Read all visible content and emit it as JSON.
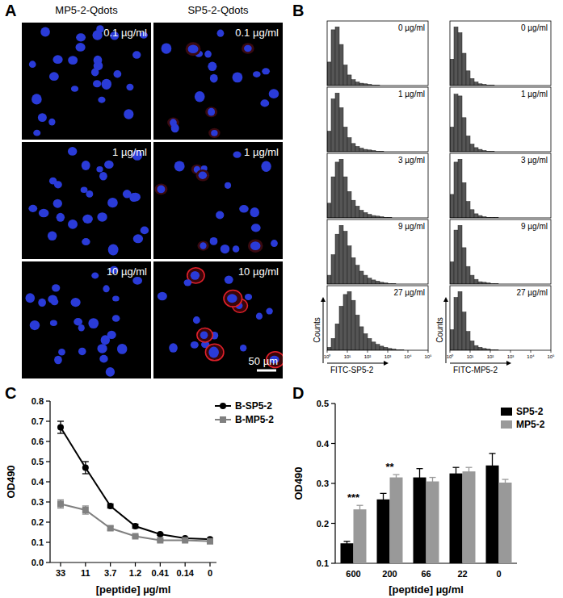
{
  "panel_labels": [
    "A",
    "B",
    "C",
    "D"
  ],
  "panel_a": {
    "columns": [
      "MP5-2-Qdots",
      "SP5-2-Qdots"
    ],
    "rows": [
      "0.1 µg/ml",
      "1 µg/ml",
      "10 µg/ml"
    ],
    "scale_bar": "50 µm"
  },
  "chart_data": [
    {
      "type": "histogram",
      "x_label": "FITC-SP5-2",
      "y_label": "Counts",
      "log": "x",
      "color": "#555555",
      "xlim": [
        1,
        100000
      ],
      "xticks": [
        {
          "value": 1,
          "label": "10⁰"
        },
        {
          "value": 10,
          "label": "10¹"
        },
        {
          "value": 100,
          "label": "10²"
        },
        {
          "value": 1000,
          "label": "10³"
        },
        {
          "value": 10000,
          "label": "10⁴"
        },
        {
          "value": 100000,
          "label": "10⁵"
        }
      ],
      "ylim": [
        0,
        110
      ],
      "bins": [
        1,
        1.585,
        2.512,
        3.981,
        6.31,
        10,
        15.85,
        25.12,
        39.81,
        63.1,
        100,
        158.5,
        251.2,
        398.1,
        631,
        1000,
        1585,
        2512,
        3981,
        6310,
        10000
      ],
      "series": [
        {
          "label": "0 µg/ml",
          "values": [
            40,
            95,
            100,
            70,
            35,
            18,
            10,
            6,
            4,
            3,
            2,
            1,
            1,
            0,
            0,
            0,
            0,
            0,
            0,
            0
          ]
        },
        {
          "label": "1 µg/ml",
          "values": [
            35,
            90,
            100,
            75,
            42,
            24,
            14,
            9,
            6,
            4,
            3,
            2,
            1,
            1,
            0,
            0,
            0,
            0,
            0,
            0
          ]
        },
        {
          "label": "3 µg/ml",
          "values": [
            25,
            70,
            95,
            100,
            70,
            45,
            30,
            20,
            13,
            9,
            6,
            4,
            3,
            2,
            1,
            1,
            0,
            0,
            0,
            0
          ]
        },
        {
          "label": "9 µg/ml",
          "values": [
            15,
            50,
            85,
            100,
            90,
            65,
            45,
            32,
            22,
            15,
            10,
            7,
            5,
            3,
            2,
            1,
            1,
            0,
            0,
            0
          ]
        },
        {
          "label": "27 µg/ml",
          "values": [
            5,
            20,
            45,
            75,
            95,
            100,
            85,
            60,
            40,
            28,
            20,
            14,
            10,
            7,
            5,
            3,
            2,
            1,
            1,
            0
          ]
        }
      ]
    },
    {
      "type": "histogram",
      "x_label": "FITC-MP5-2",
      "y_label": "Counts",
      "log": "x",
      "color": "#555555",
      "xlim": [
        1,
        100000
      ],
      "xticks": [
        {
          "value": 1,
          "label": "10⁰"
        },
        {
          "value": 10,
          "label": "10¹"
        },
        {
          "value": 100,
          "label": "10²"
        },
        {
          "value": 1000,
          "label": "10³"
        },
        {
          "value": 10000,
          "label": "10⁴"
        },
        {
          "value": 100000,
          "label": "10⁵"
        }
      ],
      "ylim": [
        0,
        110
      ],
      "bins": [
        1,
        1.585,
        2.512,
        3.981,
        6.31,
        10,
        15.85,
        25.12,
        39.81,
        63.1,
        100,
        158.5,
        251.2,
        398.1,
        631,
        1000,
        1585,
        2512,
        3981,
        6310,
        10000
      ],
      "series": [
        {
          "label": "0 µg/ml",
          "values": [
            45,
            100,
            90,
            55,
            25,
            12,
            6,
            3,
            2,
            1,
            1,
            0,
            0,
            0,
            0,
            0,
            0,
            0,
            0,
            0
          ]
        },
        {
          "label": "1 µg/ml",
          "values": [
            42,
            98,
            95,
            58,
            27,
            13,
            7,
            4,
            2,
            1,
            1,
            0,
            0,
            0,
            0,
            0,
            0,
            0,
            0,
            0
          ]
        },
        {
          "label": "3 µg/ml",
          "values": [
            40,
            95,
            100,
            60,
            28,
            14,
            7,
            4,
            2,
            1,
            1,
            1,
            0,
            0,
            0,
            0,
            0,
            0,
            0,
            0
          ]
        },
        {
          "label": "9 µg/ml",
          "values": [
            38,
            92,
            100,
            62,
            30,
            15,
            8,
            4,
            3,
            2,
            1,
            1,
            0,
            0,
            0,
            0,
            0,
            0,
            0,
            0
          ]
        },
        {
          "label": "27 µg/ml",
          "values": [
            35,
            90,
            100,
            65,
            32,
            16,
            8,
            5,
            3,
            2,
            1,
            1,
            0,
            0,
            0,
            0,
            0,
            0,
            0,
            0
          ]
        }
      ]
    },
    {
      "type": "line",
      "x_label": "[peptide] µg/ml",
      "y_label": "OD490",
      "legend": "top-right",
      "categories": [
        "33",
        "11",
        "3.7",
        "1.2",
        "0.41",
        "0.14",
        "0"
      ],
      "ylim": [
        0,
        0.8
      ],
      "yticks": [
        {
          "value": 0,
          "label": "0.0"
        },
        0.1,
        0.2,
        0.3,
        0.4,
        0.5,
        0.6,
        0.7,
        0.8
      ],
      "series": [
        {
          "name": "B-SP5-2",
          "color": "#000000",
          "marker": "circle",
          "values": [
            0.67,
            0.47,
            0.28,
            0.18,
            0.14,
            0.12,
            0.115
          ],
          "errors": [
            0.03,
            0.03,
            0.01,
            0.01,
            0.005,
            0.005,
            0.005
          ]
        },
        {
          "name": "B-MP5-2",
          "color": "#808080",
          "marker": "square",
          "values": [
            0.29,
            0.26,
            0.17,
            0.13,
            0.11,
            0.11,
            0.105
          ],
          "errors": [
            0.02,
            0.02,
            0.01,
            0.005,
            0.005,
            0.005,
            0.005
          ]
        }
      ]
    },
    {
      "type": "bar",
      "x_label": "[peptide] µg/ml",
      "y_label": "OD490",
      "legend": "top-right",
      "categories": [
        "600",
        "200",
        "66",
        "22",
        "0"
      ],
      "ylim": [
        0.1,
        0.5
      ],
      "yticks": [
        0.1,
        0.2,
        0.3,
        0.4,
        0.5
      ],
      "series": [
        {
          "name": "SP5-2",
          "color": "#000000",
          "values": [
            0.15,
            0.26,
            0.315,
            0.325,
            0.345
          ],
          "errors": [
            0.005,
            0.015,
            0.022,
            0.015,
            0.03
          ]
        },
        {
          "name": "MP5-2",
          "color": "#999999",
          "values": [
            0.235,
            0.315,
            0.305,
            0.33,
            0.302
          ],
          "errors": [
            0.01,
            0.007,
            0.01,
            0.01,
            0.008
          ]
        }
      ],
      "annotations": [
        {
          "text": "***",
          "category": "600"
        },
        {
          "text": "**",
          "category": "200"
        }
      ]
    }
  ]
}
